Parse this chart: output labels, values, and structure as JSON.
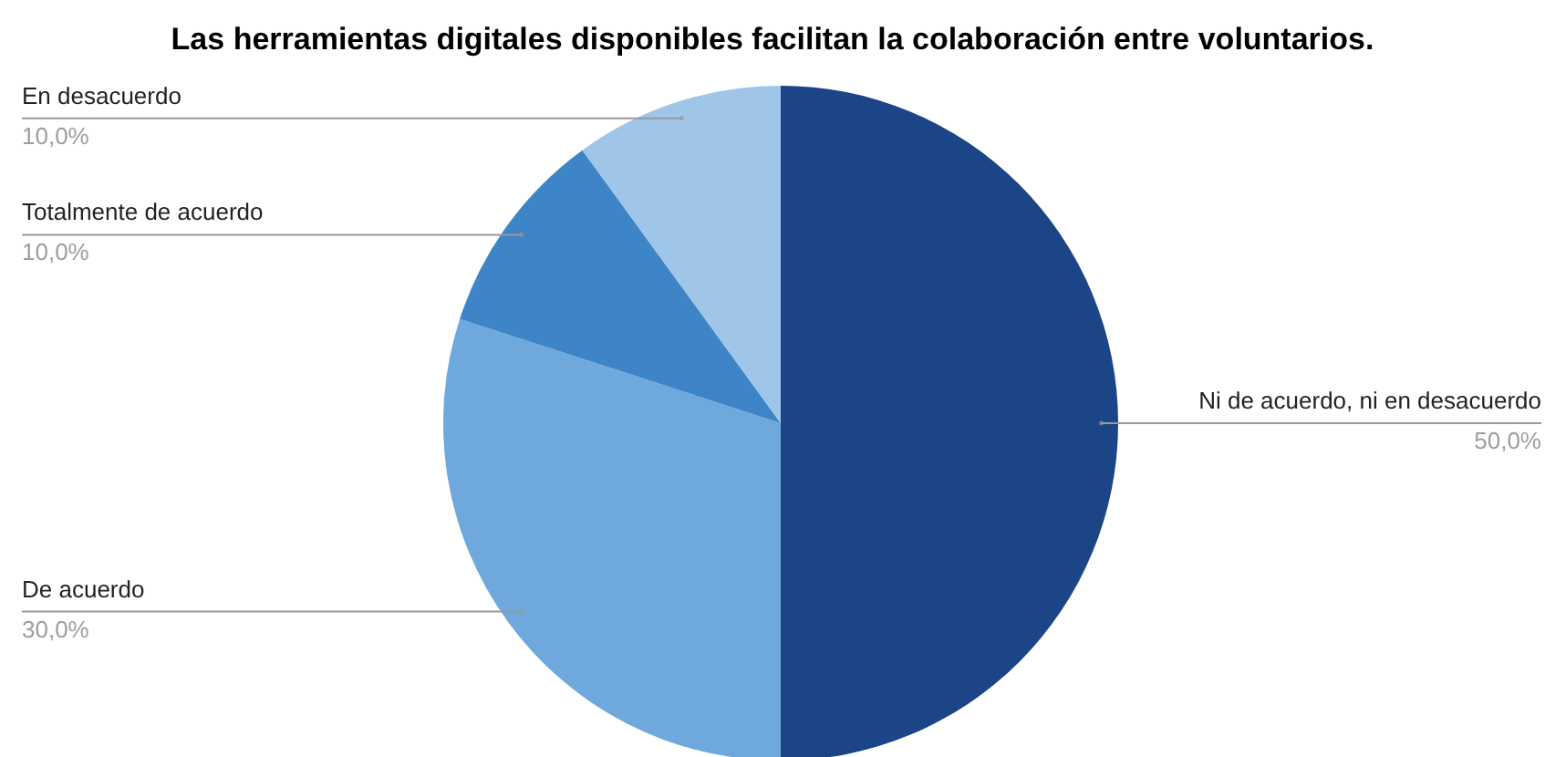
{
  "chart_data": {
    "type": "pie",
    "title": "Las herramientas digitales disponibles facilitan la colaboración entre voluntarios.",
    "categories": [
      "Ni de acuerdo, ni en desacuerdo",
      "De acuerdo",
      "Totalmente de acuerdo",
      "En desacuerdo"
    ],
    "values": [
      50,
      30,
      10,
      10
    ],
    "colors": [
      "#1c4587",
      "#6fa8dc",
      "#3d85c6",
      "#9fc5e8"
    ],
    "value_labels": [
      "50,0%",
      "30,0%",
      "10,0%",
      "10,0%"
    ]
  }
}
